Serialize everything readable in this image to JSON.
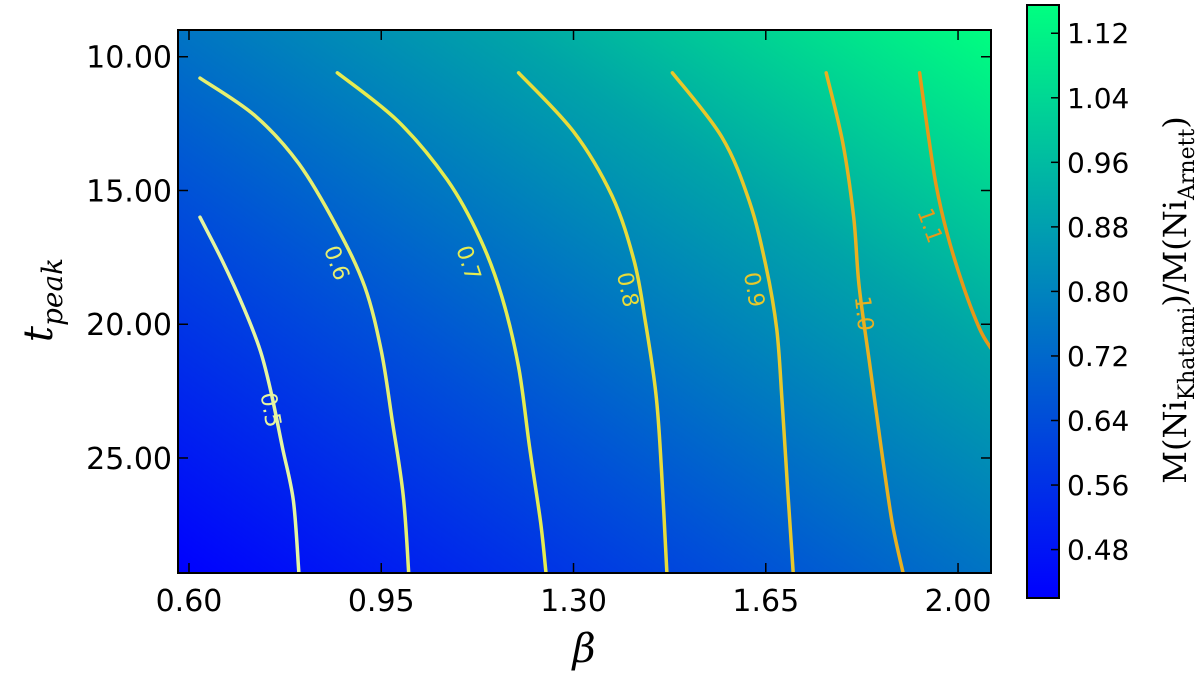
{
  "chart_data": {
    "type": "heatmap",
    "subtype": "filled-gradient-with-contours",
    "xlabel": "β",
    "ylabel_main": "t",
    "ylabel_sub": "peak",
    "colorbar_label": "M(Ni_Khatami)/M(Ni_Arnett)",
    "colorbar_label_parts": {
      "lead": "M(Ni",
      "sub1": "Khatami",
      "mid": ")/M(Ni",
      "sub2": "Arnett",
      "tail": ")"
    },
    "xlim": [
      0.58,
      2.06
    ],
    "ylim": [
      29.3,
      9.0
    ],
    "x_ticks": [
      0.6,
      0.95,
      1.3,
      1.65,
      2.0
    ],
    "x_tick_labels": [
      "0.60",
      "0.95",
      "1.30",
      "1.65",
      "2.00"
    ],
    "y_ticks": [
      10,
      15,
      20,
      25
    ],
    "y_tick_labels": [
      "10.00",
      "15.00",
      "20.00",
      "25.00"
    ],
    "colorbar_range": [
      0.42,
      1.155
    ],
    "colorbar_ticks": [
      0.48,
      0.56,
      0.64,
      0.72,
      0.8,
      0.88,
      0.96,
      1.04,
      1.12
    ],
    "colorbar_tick_labels": [
      "0.48",
      "0.56",
      "0.64",
      "0.72",
      "0.80",
      "0.88",
      "0.96",
      "1.04",
      "1.12"
    ],
    "colormap": "winter",
    "colormap_colors": [
      "#0000ff",
      "#00ff80"
    ],
    "grid": false,
    "contours": [
      {
        "level": "0.5",
        "color": "#e6f5a0",
        "points": [
          [
            0.62,
            16.0
          ],
          [
            0.66,
            17.6
          ],
          [
            0.7,
            19.4
          ],
          [
            0.73,
            21.0
          ],
          [
            0.75,
            22.6
          ],
          [
            0.77,
            24.6
          ],
          [
            0.79,
            26.6
          ],
          [
            0.8,
            29.3
          ]
        ],
        "label_at": [
          0.75,
          23.2
        ],
        "label_angle": 80
      },
      {
        "level": "0.6",
        "color": "#e6ef70",
        "points": [
          [
            0.62,
            10.8
          ],
          [
            0.72,
            12.2
          ],
          [
            0.8,
            14.0
          ],
          [
            0.87,
            16.4
          ],
          [
            0.92,
            18.6
          ],
          [
            0.95,
            21.0
          ],
          [
            0.97,
            23.6
          ],
          [
            0.99,
            26.4
          ],
          [
            1.0,
            29.3
          ]
        ],
        "label_at": [
          0.87,
          17.7
        ],
        "label_angle": 70
      },
      {
        "level": "0.7",
        "color": "#e6ec50",
        "points": [
          [
            0.87,
            10.6
          ],
          [
            0.98,
            12.4
          ],
          [
            1.07,
            14.6
          ],
          [
            1.13,
            16.8
          ],
          [
            1.17,
            19.0
          ],
          [
            1.2,
            21.6
          ],
          [
            1.22,
            24.6
          ],
          [
            1.24,
            27.4
          ],
          [
            1.25,
            29.3
          ]
        ],
        "label_at": [
          1.11,
          17.7
        ],
        "label_angle": 72
      },
      {
        "level": "0.8",
        "color": "#e8dc3a",
        "points": [
          [
            1.2,
            10.6
          ],
          [
            1.3,
            12.8
          ],
          [
            1.37,
            15.2
          ],
          [
            1.41,
            17.6
          ],
          [
            1.43,
            19.8
          ],
          [
            1.45,
            22.6
          ],
          [
            1.46,
            25.4
          ],
          [
            1.47,
            29.3
          ]
        ],
        "label_at": [
          1.4,
          18.7
        ],
        "label_angle": 78
      },
      {
        "level": "0.9",
        "color": "#e8c82a",
        "points": [
          [
            1.48,
            10.6
          ],
          [
            1.57,
            13.0
          ],
          [
            1.62,
            15.4
          ],
          [
            1.65,
            17.8
          ],
          [
            1.67,
            20.2
          ],
          [
            1.68,
            23.0
          ],
          [
            1.69,
            26.2
          ],
          [
            1.7,
            29.3
          ]
        ],
        "label_at": [
          1.63,
          18.7
        ],
        "label_angle": 80
      },
      {
        "level": "1.0",
        "color": "#e8b020",
        "points": [
          [
            1.76,
            10.6
          ],
          [
            1.79,
            13.2
          ],
          [
            1.81,
            16.0
          ],
          [
            1.82,
            18.6
          ],
          [
            1.84,
            21.6
          ],
          [
            1.86,
            24.6
          ],
          [
            1.88,
            27.4
          ],
          [
            1.9,
            29.3
          ]
        ],
        "label_at": [
          1.83,
          19.6
        ],
        "label_angle": 84
      },
      {
        "level": "1.1",
        "color": "#e89818",
        "points": [
          [
            1.93,
            10.6
          ],
          [
            1.945,
            12.8
          ],
          [
            1.96,
            14.8
          ],
          [
            1.98,
            16.6
          ],
          [
            2.01,
            18.6
          ],
          [
            2.04,
            20.2
          ],
          [
            2.06,
            20.9
          ]
        ],
        "label_at": [
          1.95,
          16.3
        ],
        "label_angle": 70
      }
    ]
  }
}
